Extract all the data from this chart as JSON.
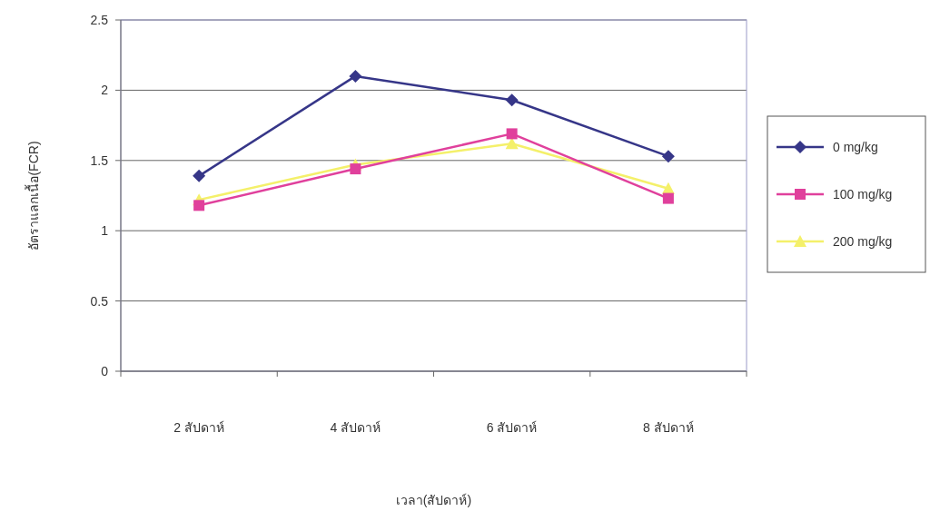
{
  "chart_data": {
    "type": "line",
    "xlabel": "เวลา(สัปดาห์)",
    "ylabel": "อัตราแลกเนื้อ(FCR)",
    "categories": [
      "2 สัปดาห์",
      "4 สัปดาห์",
      "6 สัปดาห์",
      "8 สัปดาห์"
    ],
    "series": [
      {
        "name": "0 mg/kg",
        "color": "#363688",
        "marker": "diamond",
        "values": [
          1.39,
          2.1,
          1.93,
          1.53
        ]
      },
      {
        "name": "100 mg/kg",
        "color": "#e0409c",
        "marker": "square",
        "values": [
          1.18,
          1.44,
          1.69,
          1.23
        ]
      },
      {
        "name": "200 mg/kg",
        "color": "#f4f06a",
        "marker": "triangle",
        "values": [
          1.22,
          1.47,
          1.62,
          1.3
        ]
      }
    ],
    "ylim": [
      0,
      2.5
    ],
    "yticks": [
      0,
      0.5,
      1,
      1.5,
      2,
      2.5
    ],
    "grid": "y",
    "legend": "right"
  }
}
